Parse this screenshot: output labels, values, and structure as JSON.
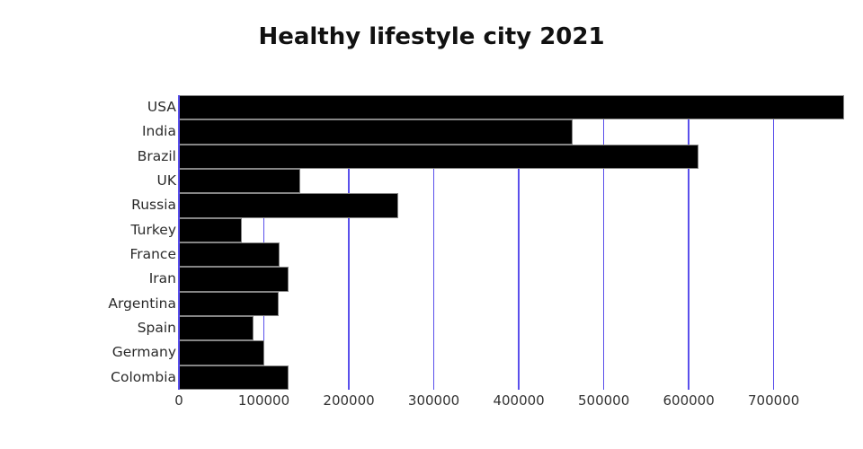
{
  "title": "Healthy lifestyle city 2021",
  "colors": {
    "bar_fill": "#000000",
    "bar_border": "#858585",
    "gridline": "#5a50eb",
    "title_text": "#111111",
    "category_label_text": "#2b2b2b",
    "tick_label_text": "#333333",
    "background": "#ffffff"
  },
  "chart_data": {
    "type": "bar",
    "orientation": "horizontal",
    "title": "Healthy lifestyle city 2021",
    "xlabel": "",
    "ylabel": "",
    "categories": [
      "USA",
      "India",
      "Brazil",
      "UK",
      "Russia",
      "Turkey",
      "France",
      "Iran",
      "Argentina",
      "Spain",
      "Germany",
      "Colombia"
    ],
    "values": [
      783000,
      463000,
      612000,
      143000,
      258000,
      74000,
      118000,
      129000,
      117000,
      88000,
      100000,
      129000
    ],
    "xlim": [
      0,
      785000
    ],
    "xticks": [
      {
        "value": 0,
        "label": "0"
      },
      {
        "value": 100000,
        "label": "100000"
      },
      {
        "value": 200000,
        "label": "200000"
      },
      {
        "value": 300000,
        "label": "300000"
      },
      {
        "value": 400000,
        "label": "400000"
      },
      {
        "value": 500000,
        "label": "500000"
      },
      {
        "value": 600000,
        "label": "600000"
      },
      {
        "value": 700000,
        "label": "700000"
      }
    ],
    "grid": "vertical-only",
    "legend": false,
    "bar_gap": 0
  }
}
